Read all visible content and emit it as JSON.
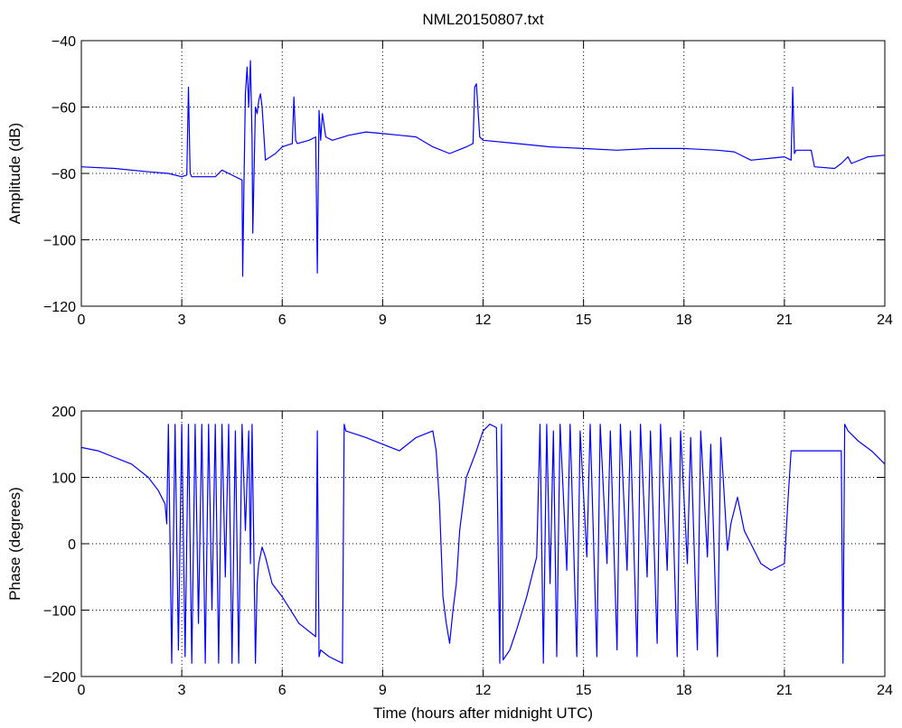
{
  "chart_data": [
    {
      "type": "line",
      "title": "NML20150807.txt",
      "xlabel": "",
      "ylabel": "Amplitude (dB)",
      "xlim": [
        0,
        24
      ],
      "ylim": [
        -120,
        -40
      ],
      "xticks": [
        "0",
        "3",
        "6",
        "9",
        "12",
        "15",
        "18",
        "21",
        "24"
      ],
      "yticks": [
        "−120",
        "−100",
        "−80",
        "−60",
        "−40"
      ],
      "grid": true,
      "series_color": "#0000ff",
      "series": [
        {
          "x": [
            0,
            1.0,
            2.0,
            2.6,
            3.0,
            3.15,
            3.2,
            3.25,
            3.3,
            3.6,
            4.0,
            4.2,
            4.4,
            4.8,
            4.82,
            4.86,
            4.9,
            4.95,
            5.0,
            5.05,
            5.1,
            5.12,
            5.2,
            5.25,
            5.3,
            5.35,
            5.4,
            5.5,
            5.8,
            6.0,
            6.3,
            6.35,
            6.4,
            6.45,
            6.8,
            7.0,
            7.05,
            7.1,
            7.15,
            7.2,
            7.3,
            7.5,
            8.0,
            8.5,
            9.0,
            9.5,
            10.0,
            10.5,
            11.0,
            11.5,
            11.7,
            11.75,
            11.8,
            11.9,
            12.0,
            13.0,
            14.0,
            15.0,
            16.0,
            17.0,
            18.0,
            19.0,
            19.5,
            20.0,
            20.5,
            21.0,
            21.2,
            21.25,
            21.3,
            21.35,
            21.5,
            21.8,
            21.9,
            22.5,
            22.7,
            22.9,
            23.0,
            23.5,
            24.0
          ],
          "y": [
            -78,
            -78.5,
            -79.5,
            -80,
            -81,
            -80.5,
            -54,
            -80,
            -81,
            -81,
            -81,
            -79,
            -80,
            -82,
            -111,
            -82,
            -56,
            -48,
            -60,
            -46,
            -70,
            -98,
            -60,
            -62,
            -58,
            -56,
            -60,
            -76,
            -74,
            -72,
            -71,
            -57,
            -70,
            -71,
            -70,
            -69,
            -110,
            -61,
            -70,
            -62,
            -69,
            -70,
            -68.5,
            -67.5,
            -68,
            -68.5,
            -69,
            -72,
            -74,
            -72,
            -71,
            -54,
            -53,
            -69,
            -70,
            -71,
            -72,
            -72.5,
            -73,
            -72.5,
            -72.5,
            -73,
            -73.5,
            -76,
            -75.5,
            -75,
            -76,
            -54,
            -74,
            -73,
            -73,
            -73,
            -78,
            -78.5,
            -77,
            -75,
            -77,
            -75,
            -74.5
          ]
        }
      ]
    },
    {
      "type": "line",
      "title": "",
      "xlabel": "Time (hours after midnight UTC)",
      "ylabel": "Phase (degrees)",
      "xlim": [
        0,
        24
      ],
      "ylim": [
        -200,
        200
      ],
      "xticks": [
        "0",
        "3",
        "6",
        "9",
        "12",
        "15",
        "18",
        "21",
        "24"
      ],
      "yticks": [
        "−200",
        "−100",
        "0",
        "100",
        "200"
      ],
      "grid": true,
      "series_color": "#0000ff",
      "series": [
        {
          "x": [
            0,
            0.5,
            1.0,
            1.5,
            2.0,
            2.3,
            2.5,
            2.55,
            2.6,
            2.7,
            2.8,
            2.9,
            3.0,
            3.1,
            3.2,
            3.3,
            3.4,
            3.5,
            3.6,
            3.7,
            3.8,
            3.9,
            4.0,
            4.1,
            4.2,
            4.3,
            4.4,
            4.5,
            4.6,
            4.7,
            4.8,
            4.9,
            5.0,
            5.05,
            5.1,
            5.2,
            5.25,
            5.3,
            5.4,
            5.5,
            5.7,
            6.0,
            6.5,
            7.0,
            7.05,
            7.1,
            7.15,
            7.4,
            7.8,
            7.85,
            7.9,
            8.2,
            8.5,
            9.0,
            9.5,
            10.0,
            10.5,
            10.6,
            10.7,
            10.8,
            10.9,
            11.0,
            11.1,
            11.2,
            11.3,
            11.5,
            11.8,
            12.0,
            12.2,
            12.4,
            12.5,
            12.55,
            12.6,
            12.8,
            13.0,
            13.3,
            13.6,
            13.7,
            13.8,
            13.9,
            14.0,
            14.1,
            14.2,
            14.3,
            14.5,
            14.6,
            14.8,
            14.9,
            15.1,
            15.2,
            15.4,
            15.5,
            15.7,
            15.8,
            16.0,
            16.1,
            16.3,
            16.4,
            16.6,
            16.7,
            16.9,
            17.0,
            17.2,
            17.3,
            17.5,
            17.6,
            17.8,
            17.9,
            18.1,
            18.2,
            18.4,
            18.5,
            18.7,
            18.8,
            19.0,
            19.1,
            19.3,
            19.4,
            19.6,
            19.8,
            20.0,
            20.3,
            20.6,
            21.0,
            21.1,
            21.2,
            21.3,
            21.5,
            22.0,
            22.5,
            22.7,
            22.75,
            22.8,
            22.9,
            23.2,
            23.6,
            24.0
          ],
          "y": [
            145,
            140,
            130,
            120,
            100,
            80,
            60,
            30,
            180,
            -180,
            180,
            -160,
            180,
            -170,
            180,
            -180,
            180,
            -120,
            180,
            -180,
            180,
            -100,
            180,
            -180,
            180,
            -50,
            180,
            -180,
            170,
            -180,
            180,
            20,
            170,
            -30,
            180,
            -180,
            -60,
            -30,
            -5,
            -20,
            -60,
            -80,
            -120,
            -140,
            170,
            -170,
            -160,
            -170,
            -180,
            180,
            170,
            165,
            160,
            150,
            140,
            160,
            170,
            140,
            60,
            -80,
            -120,
            -150,
            -100,
            -60,
            20,
            100,
            140,
            170,
            180,
            175,
            -180,
            180,
            -175,
            -160,
            -130,
            -80,
            -20,
            180,
            -180,
            180,
            -60,
            170,
            -170,
            180,
            -40,
            180,
            -170,
            170,
            -20,
            180,
            -170,
            180,
            -30,
            170,
            -160,
            180,
            -40,
            170,
            -170,
            180,
            -50,
            170,
            -150,
            180,
            -40,
            160,
            -170,
            170,
            -30,
            160,
            -160,
            170,
            -20,
            150,
            -170,
            160,
            -10,
            30,
            70,
            20,
            0,
            -30,
            -40,
            -30,
            60,
            140,
            140,
            140,
            140,
            140,
            140,
            -180,
            180,
            170,
            155,
            140,
            120
          ]
        }
      ]
    }
  ]
}
